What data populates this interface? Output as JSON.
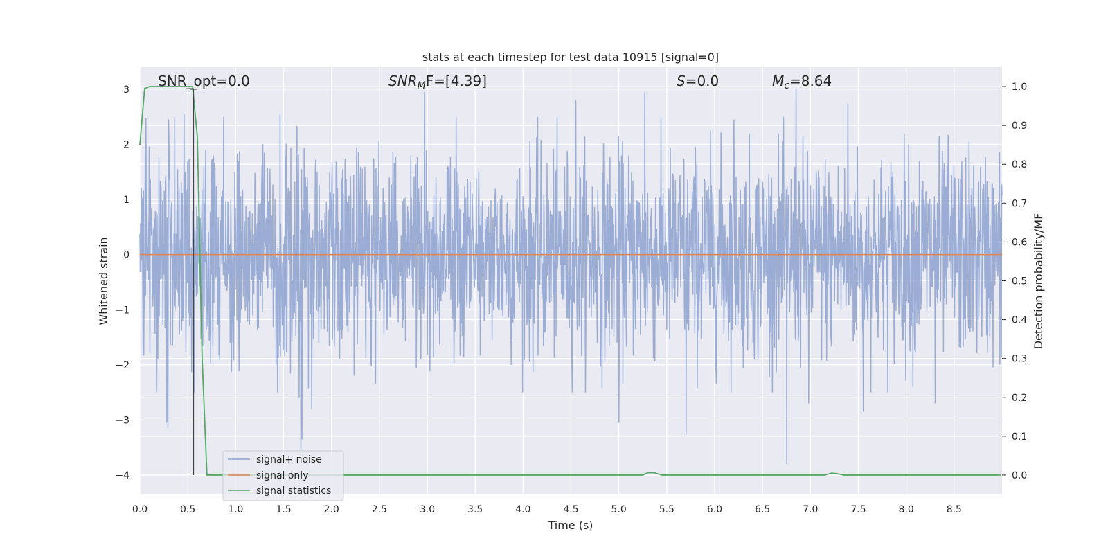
{
  "chart_data": {
    "type": "line",
    "title": "stats at each timestep for test data 10915 [signal=0]",
    "xlabel": "Time (s)",
    "ylabel_left": "Whitened strain",
    "ylabel_right": "Detection probability/MF",
    "xlim": [
      0.0,
      9.0
    ],
    "ylim_left": [
      -4.35,
      3.4
    ],
    "ylim_right": [
      -0.05,
      1.05
    ],
    "x_ticks": [
      "0.0",
      "0.5",
      "1.0",
      "1.5",
      "2.0",
      "2.5",
      "3.0",
      "3.5",
      "4.0",
      "4.5",
      "5.0",
      "5.5",
      "6.0",
      "6.5",
      "7.0",
      "7.5",
      "8.0",
      "8.5"
    ],
    "y_ticks_left": [
      "3",
      "2",
      "1",
      "0",
      "−1",
      "−2",
      "−3",
      "−4"
    ],
    "y_ticks_right": [
      "1.0",
      "0.9",
      "0.8",
      "0.7",
      "0.6",
      "0.5",
      "0.4",
      "0.3",
      "0.2",
      "0.1",
      "0.0"
    ],
    "grid": true,
    "legend_position": "lower-left",
    "annotations": {
      "snr_opt": "SNR_opt=0.0",
      "snr_mf_sym": "SNR",
      "snr_mf_sub": "M",
      "snr_mf_rest": "F=[4.39]",
      "s_sym": "S",
      "s_rest": "=0.0",
      "mc_sym": "M",
      "mc_sub": "c",
      "mc_rest": "=8.64"
    },
    "marker_line_x": 0.56,
    "series": [
      {
        "name": "signal+ noise",
        "color": "#8da2cf",
        "axis": "left",
        "noise_sigma": 1.0,
        "x_range": [
          0.0,
          9.0
        ],
        "spikes": [
          {
            "x": 0.28,
            "y": -3.05
          },
          {
            "x": 0.29,
            "y": -3.15
          },
          {
            "x": 0.3,
            "y": 2.45
          },
          {
            "x": 0.46,
            "y": 2.55
          },
          {
            "x": 1.46,
            "y": 2.55
          },
          {
            "x": 1.68,
            "y": -3.6
          },
          {
            "x": 1.69,
            "y": -3.35
          },
          {
            "x": 1.66,
            "y": -2.6
          },
          {
            "x": 1.79,
            "y": -2.8
          },
          {
            "x": 2.97,
            "y": 2.95
          },
          {
            "x": 5.0,
            "y": -3.05
          },
          {
            "x": 5.27,
            "y": 2.95
          },
          {
            "x": 5.7,
            "y": -3.25
          },
          {
            "x": 6.75,
            "y": -3.8
          },
          {
            "x": 6.85,
            "y": 3.0
          },
          {
            "x": 6.98,
            "y": -2.7
          },
          {
            "x": 7.39,
            "y": 2.75
          },
          {
            "x": 7.55,
            "y": -2.85
          },
          {
            "x": 8.3,
            "y": -2.7
          },
          {
            "x": 4.55,
            "y": 2.8
          },
          {
            "x": 6.2,
            "y": 2.45
          }
        ]
      },
      {
        "name": "signal only",
        "color": "#dd8452",
        "axis": "left",
        "x": [
          0.0,
          9.0
        ],
        "y": [
          0.0,
          0.0
        ]
      },
      {
        "name": "signal statistics",
        "color": "#55a868",
        "axis": "right",
        "x": [
          0.0,
          0.05,
          0.1,
          0.15,
          0.2,
          0.25,
          0.3,
          0.35,
          0.4,
          0.45,
          0.5,
          0.55,
          0.6,
          0.65,
          0.7,
          5.25,
          5.3,
          5.37,
          5.45,
          7.15,
          7.22,
          7.27,
          7.35,
          8.99
        ],
        "y": [
          0.85,
          0.995,
          1.0,
          1.0,
          1.0,
          1.0,
          1.0,
          1.0,
          1.0,
          1.0,
          1.0,
          1.0,
          0.87,
          0.3,
          0.0,
          0.0,
          0.006,
          0.006,
          0.0,
          0.0,
          0.005,
          0.004,
          0.0,
          0.0
        ]
      }
    ]
  }
}
